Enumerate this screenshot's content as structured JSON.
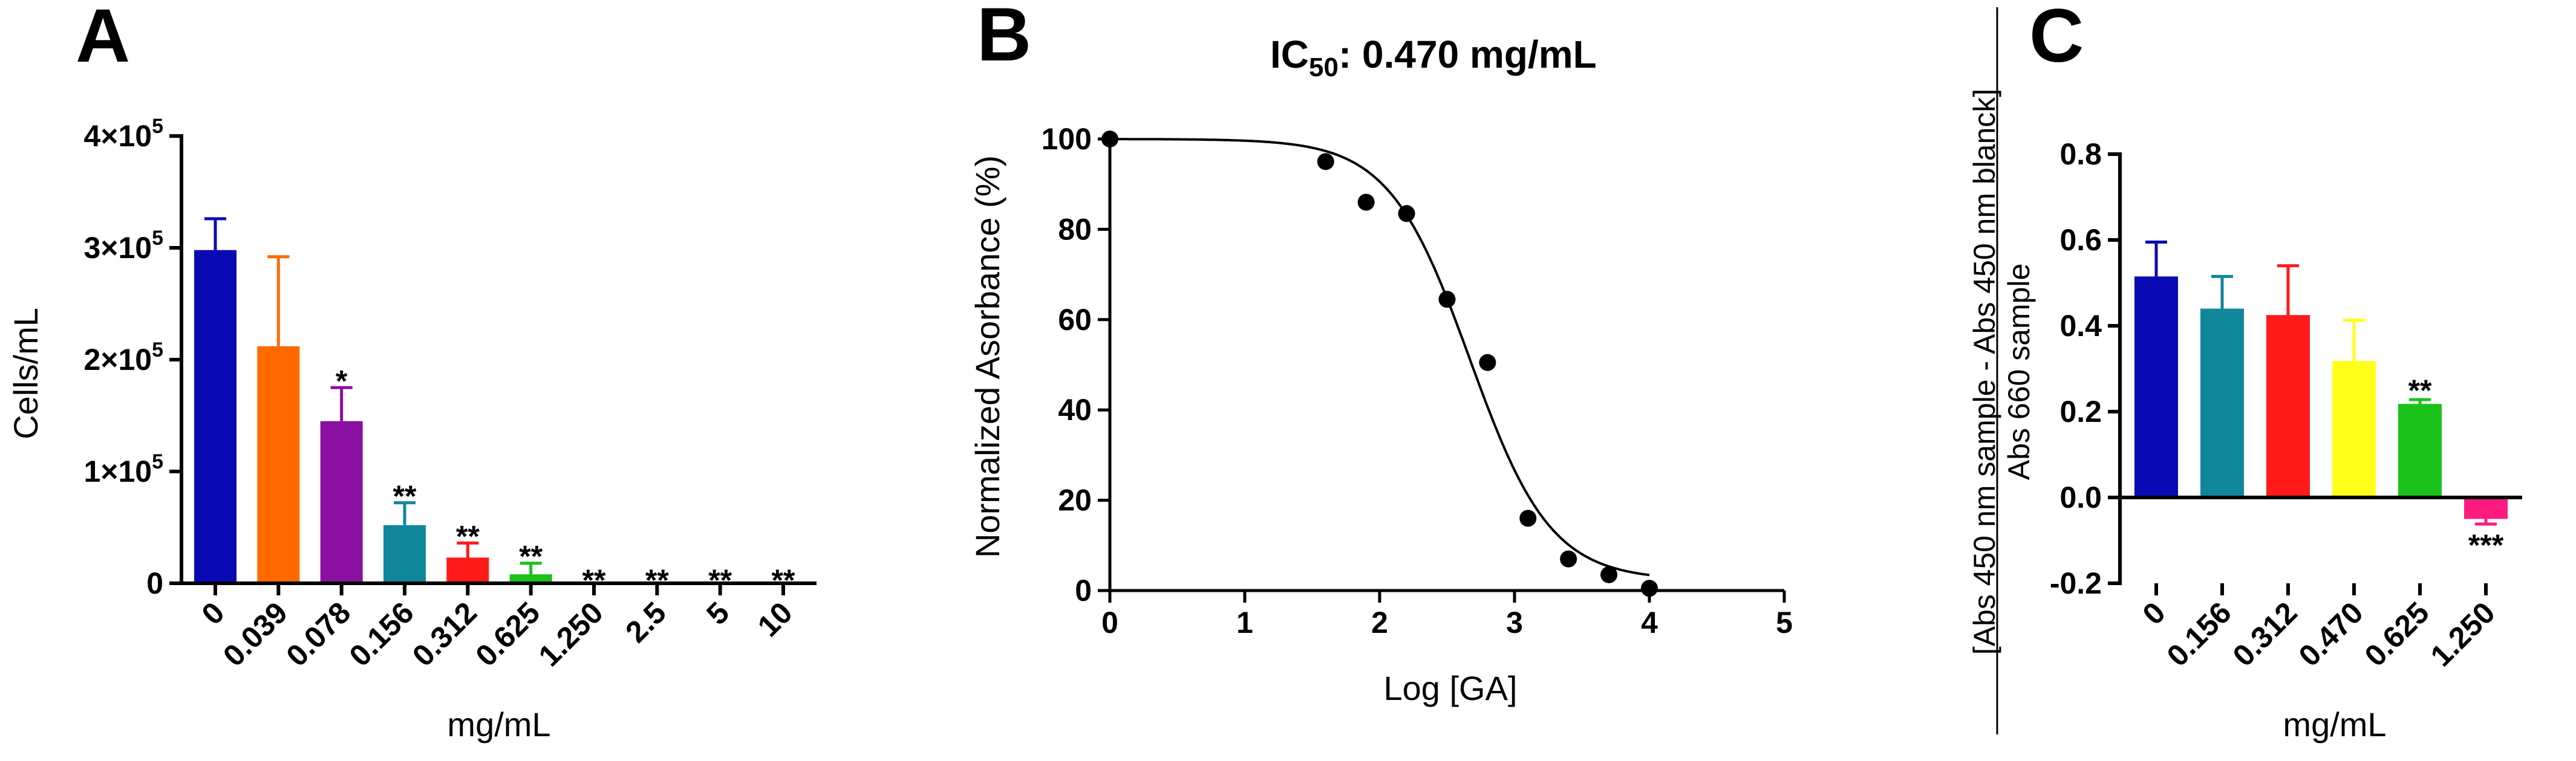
{
  "panels": {
    "A": {
      "letter": "A",
      "chart_data": {
        "type": "bar",
        "ylabel": "Cells/mL",
        "xlabel": "mg/mL",
        "ylim": [
          0,
          400000
        ],
        "yticks": [
          {
            "value": 0,
            "label": "0"
          },
          {
            "value": 100000,
            "base": "1×10",
            "exp": "5"
          },
          {
            "value": 200000,
            "base": "2×10",
            "exp": "5"
          },
          {
            "value": 300000,
            "base": "3×10",
            "exp": "5"
          },
          {
            "value": 400000,
            "base": "4×10",
            "exp": "5"
          }
        ],
        "categories": [
          "0",
          "0.039",
          "0.078",
          "0.156",
          "0.312",
          "0.625",
          "1.250",
          "2.5",
          "5",
          "10"
        ],
        "values": [
          298000,
          212000,
          145000,
          52000,
          23000,
          8000,
          0,
          0,
          0,
          0
        ],
        "errors": [
          28000,
          80000,
          30000,
          20000,
          13000,
          10000,
          0,
          0,
          0,
          0
        ],
        "colors": [
          "#0a0ab4",
          "#ff6a00",
          "#8b0fa0",
          "#10869b",
          "#ff1a1a",
          "#1bc21b",
          "#000000",
          "#000000",
          "#000000",
          "#000000"
        ],
        "significance": [
          "",
          "",
          "*",
          "**",
          "**",
          "**",
          "**",
          "**",
          "**",
          "**"
        ]
      }
    },
    "B": {
      "letter": "B",
      "title_prefix": "IC",
      "title_sub": "50",
      "title_suffix": ": 0.470 mg/mL",
      "chart_data": {
        "type": "scatter",
        "title": "IC50: 0.470 mg/mL",
        "xlabel": "Log [GA]",
        "ylabel": "Normalized Asorbance (%)",
        "xlim": [
          0,
          5
        ],
        "ylim": [
          0,
          100
        ],
        "xticks": [
          0,
          1,
          2,
          3,
          4,
          5
        ],
        "yticks": [
          0,
          20,
          40,
          60,
          80,
          100
        ],
        "points": [
          {
            "x": 0,
            "y": 100
          },
          {
            "x": 1.6,
            "y": 95
          },
          {
            "x": 1.9,
            "y": 86
          },
          {
            "x": 2.2,
            "y": 83.5
          },
          {
            "x": 2.5,
            "y": 64.5
          },
          {
            "x": 2.8,
            "y": 50.5
          },
          {
            "x": 3.1,
            "y": 16
          },
          {
            "x": 3.4,
            "y": 7
          },
          {
            "x": 3.7,
            "y": 3.5
          },
          {
            "x": 4.0,
            "y": 0.5
          }
        ],
        "fit": {
          "model": "four-parameter logistic",
          "top": 100,
          "bottom": 2.3,
          "logIC50": 2.67,
          "hill": 1.45,
          "x_range": [
            0,
            4.0
          ]
        }
      }
    },
    "C": {
      "letter": "C",
      "chart_data": {
        "type": "bar",
        "ylabel_line1": "[Abs 450 nm  sample - Abs 450 nm blanck]",
        "ylabel_line2": "Abs 660 sample",
        "xlabel": "mg/mL",
        "ylim": [
          -0.2,
          0.8
        ],
        "yticks": [
          -0.2,
          0.0,
          0.2,
          0.4,
          0.6,
          0.8
        ],
        "ytick_labels": [
          "-0.2",
          "0.0",
          "0.2",
          "0.4",
          "0.6",
          "0.8"
        ],
        "categories": [
          "0",
          "0.156",
          "0.312",
          "0.470",
          "0.625",
          "1.250"
        ],
        "values": [
          0.515,
          0.44,
          0.425,
          0.318,
          0.218,
          -0.05
        ],
        "errors": [
          0.08,
          0.075,
          0.115,
          0.095,
          0.01,
          0.012
        ],
        "colors": [
          "#0a0ab4",
          "#10869b",
          "#ff1a1a",
          "#ffff1a",
          "#1bc21b",
          "#ff1a80"
        ],
        "significance": [
          "",
          "",
          "",
          "",
          "**",
          "***"
        ]
      }
    }
  }
}
